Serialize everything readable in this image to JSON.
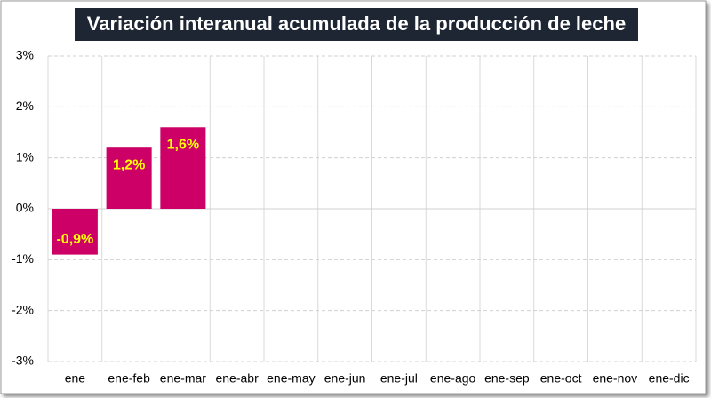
{
  "chart_data": {
    "type": "bar",
    "title": "Variación interanual acumulada de la producción de leche",
    "categories": [
      "ene",
      "ene-feb",
      "ene-mar",
      "ene-abr",
      "ene-may",
      "ene-jun",
      "ene-jul",
      "ene-ago",
      "ene-sep",
      "ene-oct",
      "ene-nov",
      "ene-dic"
    ],
    "values": [
      -0.9,
      1.2,
      1.6,
      null,
      null,
      null,
      null,
      null,
      null,
      null,
      null,
      null
    ],
    "value_labels": [
      "-0,9%",
      "1,2%",
      "1,6%",
      null,
      null,
      null,
      null,
      null,
      null,
      null,
      null,
      null
    ],
    "color": "#cc0066",
    "ylim": [
      -3,
      3
    ],
    "yticks": [
      {
        "value": -3,
        "label": "-3%"
      },
      {
        "value": -2,
        "label": "-2%"
      },
      {
        "value": -1,
        "label": "-1%"
      },
      {
        "value": 0,
        "label": "0%"
      },
      {
        "value": 1,
        "label": "1%"
      },
      {
        "value": 2,
        "label": "2%"
      },
      {
        "value": 3,
        "label": "3%"
      }
    ],
    "grid": true
  }
}
